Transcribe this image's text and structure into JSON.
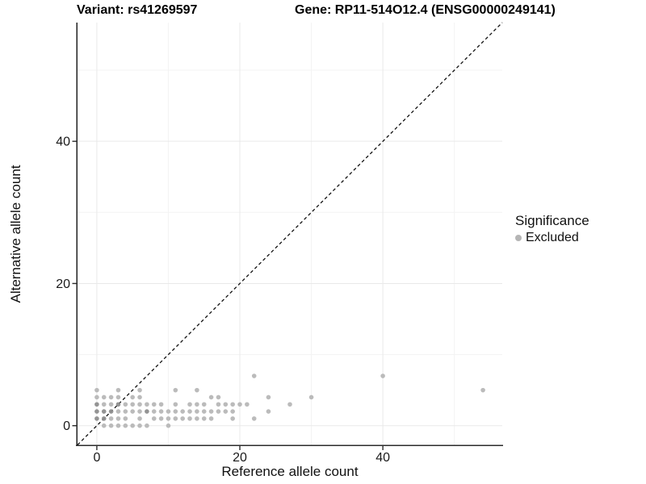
{
  "header": {
    "variant_title": "Variant: rs41269597",
    "gene_title": "Gene: RP11-514O12.4 (ENSG00000249141)"
  },
  "legend": {
    "title": "Significance",
    "items": [
      {
        "label": "Excluded",
        "color": "#b5b5b5"
      }
    ]
  },
  "chart_data": {
    "type": "scatter",
    "xlabel": "Reference allele count",
    "ylabel": "Alternative allele count",
    "xlim": [
      -2.7,
      56.7
    ],
    "ylim": [
      -2.7,
      56.7
    ],
    "x_major_ticks": [
      0,
      20,
      40
    ],
    "x_minor_ticks": [
      10,
      30,
      50
    ],
    "y_major_ticks": [
      0,
      20,
      40
    ],
    "y_minor_ticks": [
      10,
      30,
      50
    ],
    "grid": {
      "major_color": "#e9e9e9",
      "minor_color": "#f3f3f3"
    },
    "identity_line": {
      "style": "dashed",
      "color": "#111111",
      "from": [
        -2.7,
        -2.7
      ],
      "to": [
        56.7,
        56.7
      ]
    },
    "point_colors": {
      "normal": "#b7b7b7",
      "overplotted": "#8e8e8e"
    },
    "series": [
      {
        "name": "Excluded",
        "points": [
          [
            1,
            0
          ],
          [
            2,
            0
          ],
          [
            3,
            0
          ],
          [
            4,
            0
          ],
          [
            5,
            0
          ],
          [
            6,
            0
          ],
          [
            7,
            0
          ],
          [
            10,
            0
          ],
          [
            0,
            1,
            1
          ],
          [
            1,
            1,
            1
          ],
          [
            2,
            1
          ],
          [
            3,
            1
          ],
          [
            4,
            1
          ],
          [
            6,
            1
          ],
          [
            8,
            1
          ],
          [
            9,
            1
          ],
          [
            10,
            1
          ],
          [
            11,
            1
          ],
          [
            12,
            1
          ],
          [
            13,
            1
          ],
          [
            14,
            1
          ],
          [
            15,
            1
          ],
          [
            16,
            1
          ],
          [
            19,
            1
          ],
          [
            22,
            1
          ],
          [
            0,
            2,
            1
          ],
          [
            1,
            2,
            1
          ],
          [
            2,
            2,
            1
          ],
          [
            3,
            2
          ],
          [
            4,
            2
          ],
          [
            5,
            2
          ],
          [
            6,
            2
          ],
          [
            7,
            2,
            1
          ],
          [
            8,
            2
          ],
          [
            9,
            2
          ],
          [
            10,
            2
          ],
          [
            11,
            2
          ],
          [
            12,
            2
          ],
          [
            13,
            2
          ],
          [
            14,
            2
          ],
          [
            15,
            2
          ],
          [
            16,
            2
          ],
          [
            17,
            2
          ],
          [
            18,
            2
          ],
          [
            19,
            2
          ],
          [
            24,
            2
          ],
          [
            0,
            3,
            1
          ],
          [
            1,
            3
          ],
          [
            2,
            3
          ],
          [
            3,
            3,
            1
          ],
          [
            4,
            3
          ],
          [
            5,
            3
          ],
          [
            6,
            3
          ],
          [
            7,
            3
          ],
          [
            8,
            3
          ],
          [
            9,
            3
          ],
          [
            11,
            3
          ],
          [
            13,
            3
          ],
          [
            14,
            3
          ],
          [
            15,
            3
          ],
          [
            17,
            3
          ],
          [
            18,
            3
          ],
          [
            19,
            3
          ],
          [
            20,
            3
          ],
          [
            21,
            3
          ],
          [
            27,
            3
          ],
          [
            0,
            4
          ],
          [
            1,
            4
          ],
          [
            2,
            4
          ],
          [
            3,
            4
          ],
          [
            5,
            4
          ],
          [
            6,
            4
          ],
          [
            16,
            4
          ],
          [
            17,
            4
          ],
          [
            24,
            4
          ],
          [
            30,
            4
          ],
          [
            0,
            5
          ],
          [
            3,
            5
          ],
          [
            6,
            5
          ],
          [
            11,
            5
          ],
          [
            14,
            5
          ],
          [
            54,
            5
          ],
          [
            22,
            7
          ],
          [
            40,
            7
          ]
        ]
      }
    ]
  }
}
